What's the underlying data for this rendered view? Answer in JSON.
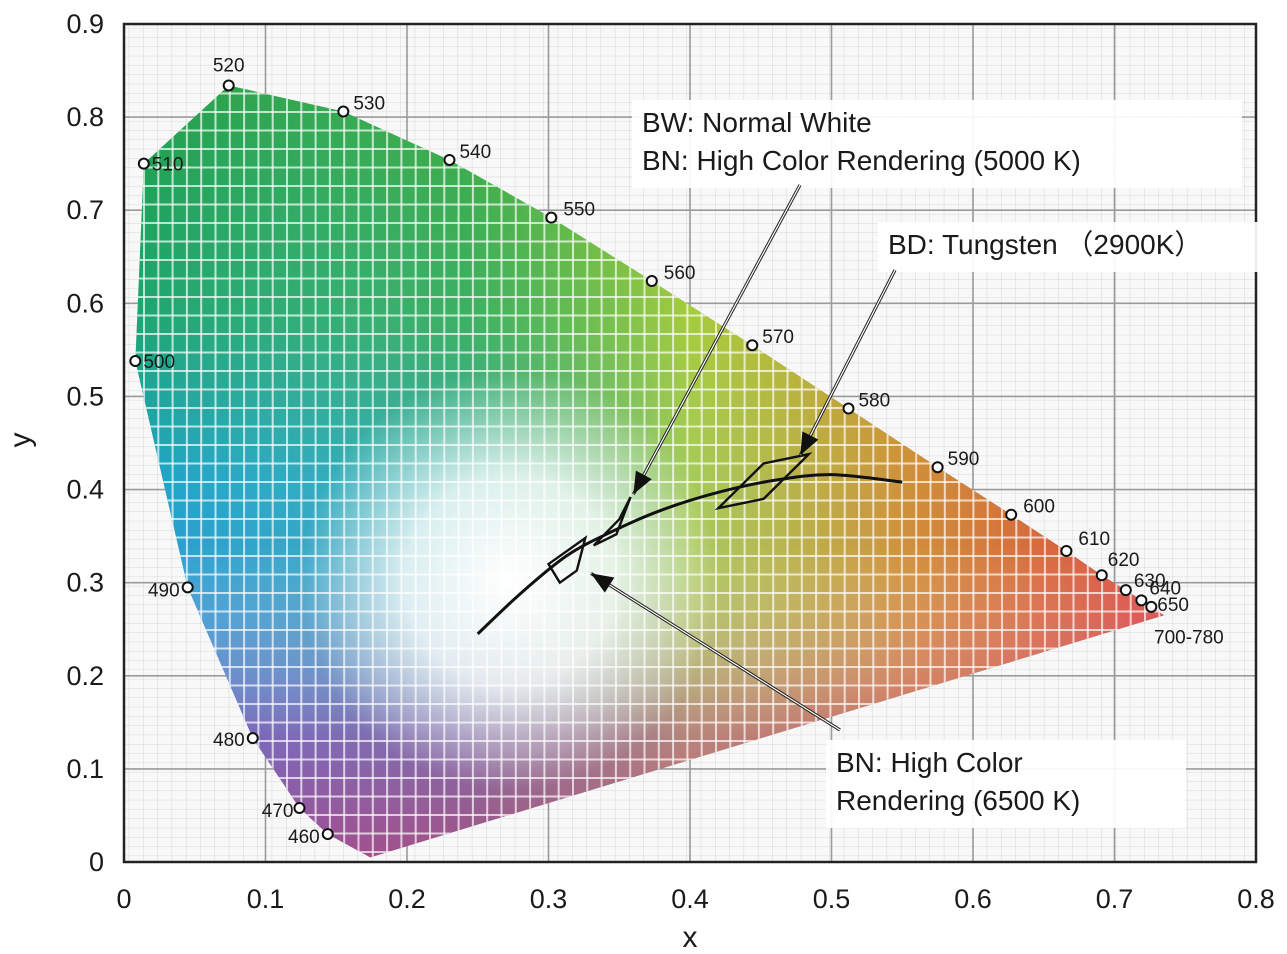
{
  "chart_data": {
    "type": "scatter",
    "xlabel": "x",
    "ylabel": "y",
    "xlim": [
      0,
      0.8
    ],
    "ylim": [
      0,
      0.9
    ],
    "x_ticks": [
      "0",
      "0.1",
      "0.2",
      "0.3",
      "0.4",
      "0.5",
      "0.6",
      "0.7",
      "0.8"
    ],
    "y_ticks": [
      "0",
      "0.1",
      "0.2",
      "0.3",
      "0.4",
      "0.5",
      "0.6",
      "0.7",
      "0.8",
      "0.9"
    ],
    "grid": true,
    "spectral_locus": [
      {
        "label": "460",
        "x": 0.144,
        "y": 0.03
      },
      {
        "label": "470",
        "x": 0.124,
        "y": 0.058
      },
      {
        "label": "480",
        "x": 0.091,
        "y": 0.133
      },
      {
        "label": "490",
        "x": 0.045,
        "y": 0.295
      },
      {
        "label": "500",
        "x": 0.008,
        "y": 0.538
      },
      {
        "label": "510",
        "x": 0.014,
        "y": 0.75
      },
      {
        "label": "520",
        "x": 0.074,
        "y": 0.834
      },
      {
        "label": "530",
        "x": 0.155,
        "y": 0.806
      },
      {
        "label": "540",
        "x": 0.23,
        "y": 0.754
      },
      {
        "label": "550",
        "x": 0.302,
        "y": 0.692
      },
      {
        "label": "560",
        "x": 0.373,
        "y": 0.624
      },
      {
        "label": "570",
        "x": 0.444,
        "y": 0.555
      },
      {
        "label": "580",
        "x": 0.512,
        "y": 0.487
      },
      {
        "label": "590",
        "x": 0.575,
        "y": 0.424
      },
      {
        "label": "600",
        "x": 0.627,
        "y": 0.373
      },
      {
        "label": "610",
        "x": 0.666,
        "y": 0.334
      },
      {
        "label": "620",
        "x": 0.691,
        "y": 0.308
      },
      {
        "label": "630",
        "x": 0.708,
        "y": 0.292
      },
      {
        "label": "640",
        "x": 0.719,
        "y": 0.281
      },
      {
        "label": "650",
        "x": 0.726,
        "y": 0.274
      },
      {
        "label": "700-780",
        "x": 0.735,
        "y": 0.265
      }
    ],
    "planckian_locus": [
      {
        "x": 0.25,
        "y": 0.245
      },
      {
        "x": 0.28,
        "y": 0.288
      },
      {
        "x": 0.313,
        "y": 0.329
      },
      {
        "x": 0.345,
        "y": 0.355
      },
      {
        "x": 0.38,
        "y": 0.378
      },
      {
        "x": 0.42,
        "y": 0.397
      },
      {
        "x": 0.46,
        "y": 0.41
      },
      {
        "x": 0.5,
        "y": 0.416
      },
      {
        "x": 0.55,
        "y": 0.408
      }
    ],
    "regions": [
      {
        "name": "BN 6500K",
        "corners": [
          [
            0.3,
            0.32
          ],
          [
            0.326,
            0.348
          ],
          [
            0.32,
            0.313
          ],
          [
            0.308,
            0.3
          ]
        ]
      },
      {
        "name": "BW/BN 5000K",
        "corners": [
          [
            0.332,
            0.34
          ],
          [
            0.35,
            0.368
          ],
          [
            0.358,
            0.392
          ],
          [
            0.348,
            0.352
          ]
        ]
      },
      {
        "name": "BD 2900K",
        "corners": [
          [
            0.42,
            0.38
          ],
          [
            0.452,
            0.428
          ],
          [
            0.484,
            0.438
          ],
          [
            0.452,
            0.39
          ]
        ]
      }
    ],
    "annotations": [
      {
        "lines": [
          "BW: Normal White",
          "BN: High Color Rendering (5000 K)"
        ],
        "target": [
          0.36,
          0.395
        ]
      },
      {
        "lines": [
          "BD: Tungsten （2900K）"
        ],
        "target": [
          0.478,
          0.437
        ]
      },
      {
        "lines": [
          "BN: High Color",
          "Rendering (6500 K)"
        ],
        "target": [
          0.33,
          0.31
        ]
      }
    ]
  }
}
